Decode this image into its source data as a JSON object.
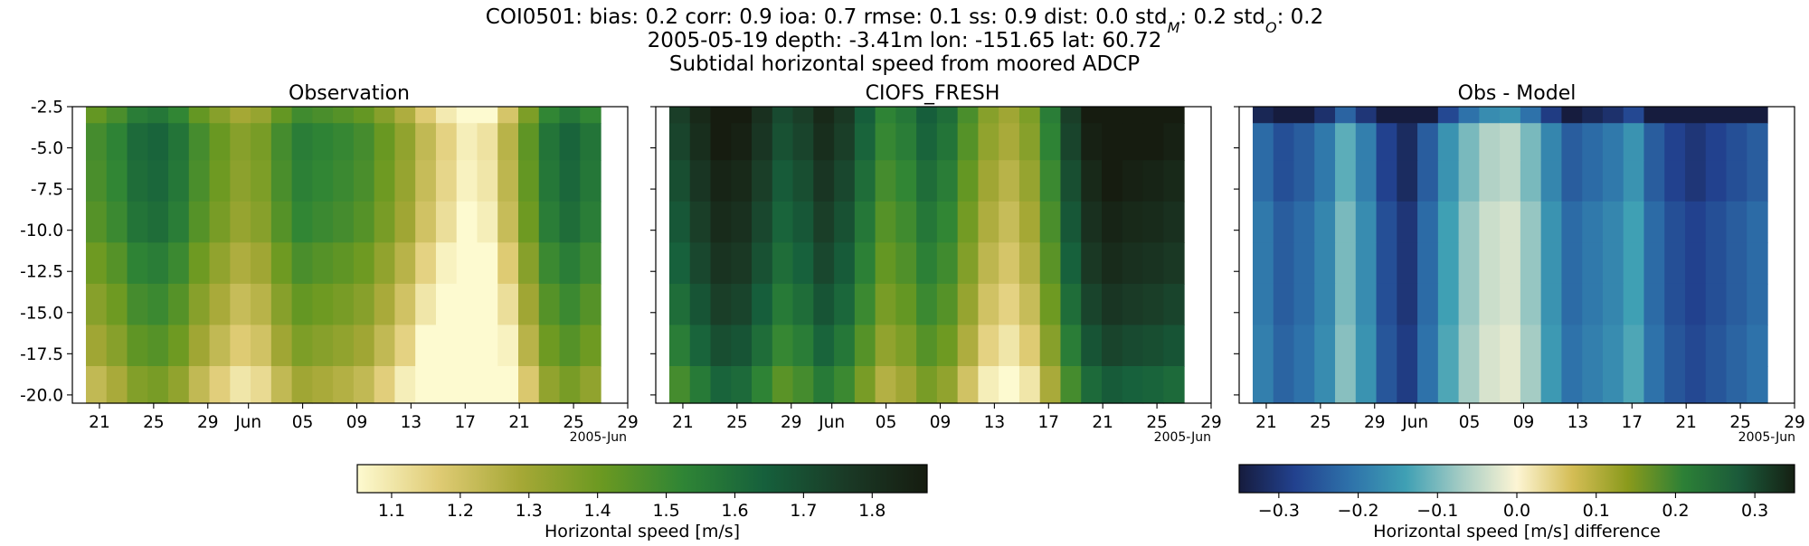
{
  "header": {
    "title_line1": "COI0501: bias: 0.2  corr: 0.9  ioa: 0.7  rmse: 0.1  ss: 0.9  dist: 0.0  std",
    "std_m_sub": "M",
    "std_m_val": ": 0.2  std",
    "std_o_sub": "O",
    "std_o_val": ": 0.2",
    "title_line2": "2005-05-19 depth: -3.41m lon: -151.65 lat: 60.72",
    "title_line3": "Subtidal horizontal speed from moored ADCP"
  },
  "chart_data": [
    {
      "type": "heatmap",
      "title": "Observation",
      "xlabel": "",
      "ylabel": "",
      "x_ticklabels": [
        "21",
        "25",
        "29",
        "Jun",
        "05",
        "09",
        "13",
        "17",
        "21",
        "25",
        "29"
      ],
      "x_offset_label": "2005-Jun",
      "y_ticklabels": [
        "-2.5",
        "-5.0",
        "-7.5",
        "-10.0",
        "-12.5",
        "-15.0",
        "-17.5",
        "-20.0"
      ],
      "ylim": [
        -20.5,
        -2.5
      ],
      "xlim": [
        "2005-05-19",
        "2005-06-29"
      ],
      "data_x_range": [
        "2005-05-20",
        "2005-06-27"
      ],
      "depth_levels": [
        -2.5,
        -4.5,
        -7.0,
        -9.5,
        -12.0,
        -14.5,
        -17.0,
        -19.5
      ],
      "time_profile": [
        1.45,
        1.5,
        1.58,
        1.6,
        1.55,
        1.45,
        1.38,
        1.32,
        1.35,
        1.45,
        1.52,
        1.5,
        1.48,
        1.45,
        1.38,
        1.3,
        1.2,
        1.12,
        1.05,
        1.08,
        1.22,
        1.4,
        1.55,
        1.6,
        1.55
      ],
      "depth_offset": [
        -0.03,
        0.03,
        0.02,
        0.0,
        -0.05,
        -0.1,
        -0.15,
        -0.22
      ],
      "colormap": "speed",
      "vmin": 1.05,
      "vmax": 1.88
    },
    {
      "type": "heatmap",
      "title": "CIOFS_FRESH",
      "x_ticklabels": [
        "21",
        "25",
        "29",
        "Jun",
        "05",
        "09",
        "13",
        "17",
        "21",
        "25",
        "29"
      ],
      "x_offset_label": "2005-Jun",
      "ylim": [
        -20.5,
        -2.5
      ],
      "xlim": [
        "2005-05-19",
        "2005-06-29"
      ],
      "data_x_range": [
        "2005-05-20",
        "2005-06-27"
      ],
      "depth_levels": [
        -2.5,
        -4.5,
        -7.0,
        -9.5,
        -12.0,
        -14.5,
        -17.0,
        -19.5
      ],
      "time_profile": [
        1.7,
        1.78,
        1.85,
        1.83,
        1.75,
        1.66,
        1.7,
        1.78,
        1.72,
        1.6,
        1.48,
        1.52,
        1.6,
        1.55,
        1.42,
        1.3,
        1.25,
        1.32,
        1.5,
        1.7,
        1.83,
        1.88,
        1.86,
        1.85,
        1.83
      ],
      "depth_offset": [
        0.05,
        0.03,
        0.0,
        -0.03,
        -0.06,
        -0.1,
        -0.15,
        -0.22
      ],
      "colormap": "speed",
      "vmin": 1.05,
      "vmax": 1.88
    },
    {
      "type": "heatmap",
      "title": "Obs - Model",
      "x_ticklabels": [
        "21",
        "25",
        "29",
        "Jun",
        "05",
        "09",
        "13",
        "17",
        "21",
        "25",
        "29"
      ],
      "x_offset_label": "2005-Jun",
      "ylim": [
        -20.5,
        -2.5
      ],
      "xlim": [
        "2005-05-19",
        "2005-06-29"
      ],
      "data_x_range": [
        "2005-05-20",
        "2005-06-27"
      ],
      "depth_levels": [
        -2.5,
        -4.5,
        -7.0,
        -9.5,
        -12.0,
        -14.5,
        -17.0,
        -19.5
      ],
      "time_profile": [
        -0.2,
        -0.24,
        -0.22,
        -0.18,
        -0.1,
        -0.17,
        -0.26,
        -0.3,
        -0.22,
        -0.14,
        -0.08,
        -0.04,
        -0.03,
        -0.08,
        -0.16,
        -0.22,
        -0.2,
        -0.18,
        -0.14,
        -0.22,
        -0.26,
        -0.28,
        -0.26,
        -0.24,
        -0.22
      ],
      "depth_offset": [
        -0.13,
        -0.02,
        -0.02,
        0.0,
        0.0,
        0.0,
        0.01,
        0.01
      ],
      "colormap": "diff",
      "vmin": -0.35,
      "vmax": 0.35
    }
  ],
  "colorbars": [
    {
      "label": "Horizontal speed [m/s]",
      "ticks": [
        1.1,
        1.2,
        1.3,
        1.4,
        1.5,
        1.6,
        1.7,
        1.8
      ],
      "tick_labels": [
        "1.1",
        "1.2",
        "1.3",
        "1.4",
        "1.5",
        "1.6",
        "1.7",
        "1.8"
      ],
      "vmin": 1.05,
      "vmax": 1.88,
      "colormap": "speed"
    },
    {
      "label": "Horizontal speed [m/s] difference",
      "ticks": [
        -0.3,
        -0.2,
        -0.1,
        0.0,
        0.1,
        0.2,
        0.3
      ],
      "tick_labels": [
        "−0.3",
        "−0.2",
        "−0.1",
        "0.0",
        "0.1",
        "0.2",
        "0.3"
      ],
      "vmin": -0.35,
      "vmax": 0.35,
      "colormap": "diff"
    }
  ],
  "colormaps": {
    "speed": [
      "#fdfad0",
      "#dfcb74",
      "#a6a836",
      "#6b9921",
      "#2f8535",
      "#16603c",
      "#1a3a26",
      "#161c10"
    ],
    "diff": [
      "#161c3e",
      "#22418e",
      "#2e72aa",
      "#3fa0b4",
      "#a5ccc4",
      "#fdf5d4",
      "#d4bd55",
      "#8a9a1c",
      "#2c8036",
      "#1b5a3a",
      "#152013"
    ]
  }
}
